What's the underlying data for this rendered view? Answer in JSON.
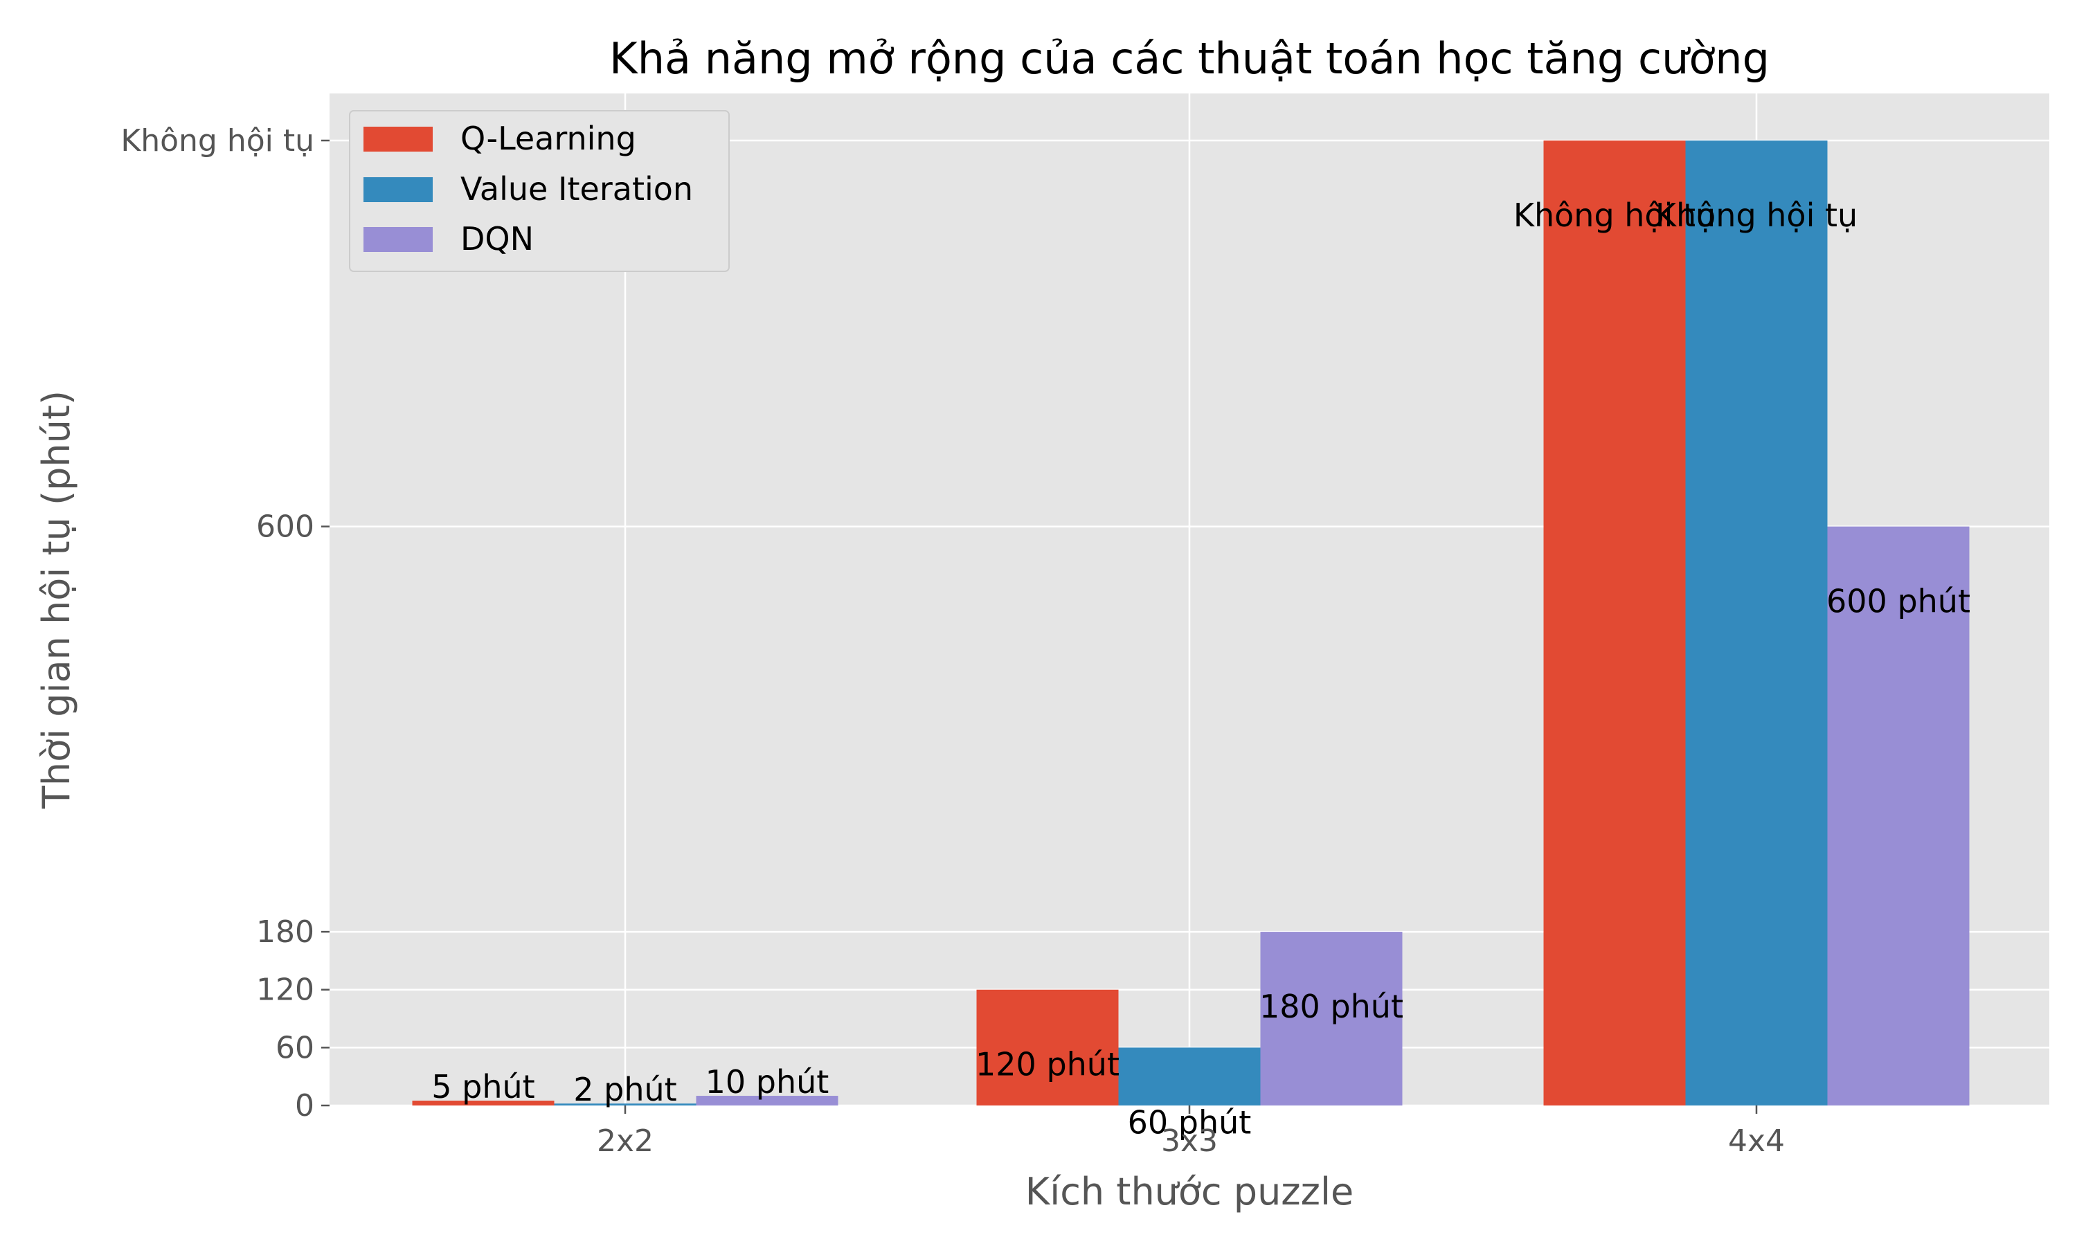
{
  "chart_data": {
    "type": "bar",
    "title": "Khả năng mở rộng của các thuật toán học tăng cường",
    "xlabel": "Kích thước puzzle",
    "ylabel": "Thời gian hội tụ (phút)",
    "categories": [
      "2x2",
      "3x3",
      "4x4"
    ],
    "ylim": [
      0,
      1000
    ],
    "yticks": [
      {
        "value": 0,
        "label": "0"
      },
      {
        "value": 60,
        "label": "60"
      },
      {
        "value": 120,
        "label": "120"
      },
      {
        "value": 180,
        "label": "180"
      },
      {
        "value": 600,
        "label": "600"
      },
      {
        "value": 1000,
        "label": "Không hội tụ"
      }
    ],
    "grid": true,
    "legend_position": "top-left",
    "series": [
      {
        "name": "Q-Learning",
        "color": "#E24A33",
        "values": [
          5,
          120,
          1000
        ],
        "labels": [
          "5 phút",
          "120 phút",
          "Không hội tụ"
        ]
      },
      {
        "name": "Value Iteration",
        "color": "#348ABD",
        "values": [
          2,
          60,
          1000
        ],
        "labels": [
          "2 phút",
          "60 phút",
          "Không hội tụ"
        ]
      },
      {
        "name": "DQN",
        "color": "#988ED5",
        "values": [
          10,
          180,
          600
        ],
        "labels": [
          "10 phút",
          "180 phút",
          "600 phút"
        ]
      }
    ]
  }
}
